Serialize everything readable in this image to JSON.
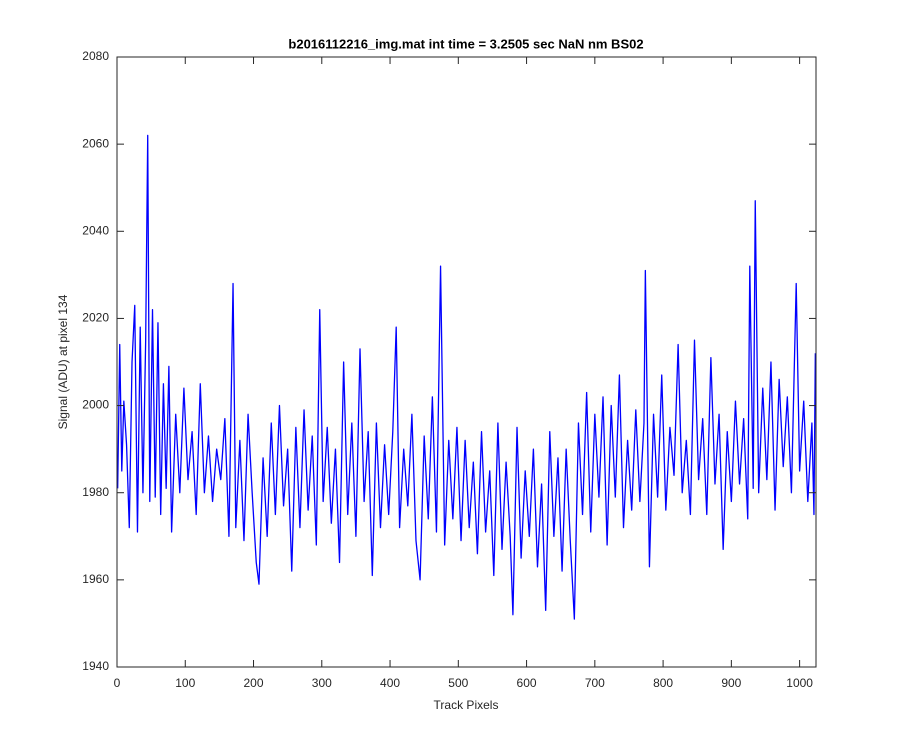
{
  "chart_data": {
    "type": "line",
    "title": "b2016112216_img.mat int time = 3.2505 sec  NaN nm BS02",
    "x_label": "Track Pixels",
    "y_label": "Signal (ADU) at pixel 134",
    "xlim": [
      0,
      1024
    ],
    "ylim": [
      1940,
      2080
    ],
    "xticks": [
      0,
      100,
      200,
      300,
      400,
      500,
      600,
      700,
      800,
      900,
      1000
    ],
    "yticks": [
      1940,
      1960,
      1980,
      2000,
      2020,
      2040,
      2060,
      2080
    ],
    "grid": false,
    "series": [
      {
        "color": "#0000ff",
        "x": [
          1,
          4,
          7,
          10,
          14,
          18,
          22,
          26,
          30,
          34,
          38,
          42,
          45,
          48,
          52,
          56,
          60,
          64,
          68,
          72,
          76,
          80,
          86,
          92,
          98,
          104,
          110,
          116,
          122,
          128,
          134,
          140,
          146,
          152,
          158,
          164,
          170,
          174,
          180,
          186,
          192,
          198,
          204,
          208,
          214,
          220,
          226,
          232,
          238,
          244,
          250,
          256,
          262,
          268,
          274,
          280,
          286,
          292,
          297,
          302,
          308,
          314,
          320,
          326,
          332,
          338,
          344,
          350,
          356,
          362,
          368,
          374,
          380,
          386,
          392,
          398,
          404,
          409,
          414,
          420,
          426,
          432,
          438,
          444,
          450,
          456,
          462,
          468,
          474,
          480,
          486,
          492,
          498,
          504,
          510,
          516,
          522,
          528,
          534,
          540,
          546,
          552,
          558,
          564,
          570,
          576,
          580,
          586,
          592,
          598,
          604,
          610,
          616,
          622,
          628,
          634,
          640,
          646,
          652,
          658,
          664,
          670,
          676,
          682,
          688,
          694,
          700,
          706,
          712,
          718,
          724,
          730,
          736,
          742,
          748,
          754,
          760,
          766,
          772,
          774,
          780,
          786,
          792,
          798,
          804,
          810,
          816,
          822,
          828,
          834,
          840,
          846,
          852,
          858,
          864,
          870,
          876,
          882,
          888,
          894,
          900,
          906,
          912,
          918,
          924,
          927,
          932,
          935,
          940,
          946,
          952,
          958,
          964,
          970,
          976,
          982,
          988,
          995,
          1000,
          1006,
          1012,
          1018,
          1021,
          1023
        ],
        "values": [
          1981,
          2014,
          1985,
          2001,
          1991,
          1972,
          2010,
          2023,
          1971,
          2018,
          1980,
          2015,
          2062,
          1978,
          2022,
          1979,
          2019,
          1975,
          2005,
          1981,
          2009,
          1971,
          1998,
          1980,
          2004,
          1983,
          1994,
          1975,
          2005,
          1980,
          1993,
          1978,
          1990,
          1983,
          1997,
          1970,
          2028,
          1972,
          1992,
          1969,
          1998,
          1980,
          1964,
          1959,
          1988,
          1970,
          1996,
          1975,
          2000,
          1977,
          1990,
          1962,
          1995,
          1972,
          1999,
          1976,
          1993,
          1968,
          2022,
          1978,
          1995,
          1973,
          1990,
          1964,
          2010,
          1975,
          1996,
          1970,
          2013,
          1978,
          1994,
          1961,
          1996,
          1972,
          1991,
          1975,
          1994,
          2018,
          1972,
          1990,
          1977,
          1998,
          1969,
          1960,
          1993,
          1974,
          2002,
          1971,
          2032,
          1968,
          1992,
          1974,
          1995,
          1969,
          1992,
          1972,
          1987,
          1966,
          1994,
          1971,
          1985,
          1961,
          1996,
          1967,
          1987,
          1970,
          1952,
          1995,
          1965,
          1985,
          1970,
          1990,
          1963,
          1982,
          1953,
          1994,
          1970,
          1988,
          1962,
          1990,
          1969,
          1951,
          1996,
          1975,
          2003,
          1971,
          1998,
          1979,
          2002,
          1968,
          2000,
          1979,
          2007,
          1972,
          1992,
          1976,
          1999,
          1978,
          1996,
          2031,
          1963,
          1998,
          1979,
          2007,
          1976,
          1995,
          1984,
          2014,
          1980,
          1992,
          1975,
          2015,
          1983,
          1997,
          1975,
          2011,
          1982,
          1998,
          1967,
          1994,
          1978,
          2001,
          1982,
          1997,
          1974,
          2032,
          1981,
          2047,
          1980,
          2004,
          1983,
          2010,
          1976,
          2006,
          1986,
          2002,
          1980,
          2028,
          1985,
          2001,
          1978,
          1996,
          1975,
          2012
        ]
      }
    ]
  }
}
